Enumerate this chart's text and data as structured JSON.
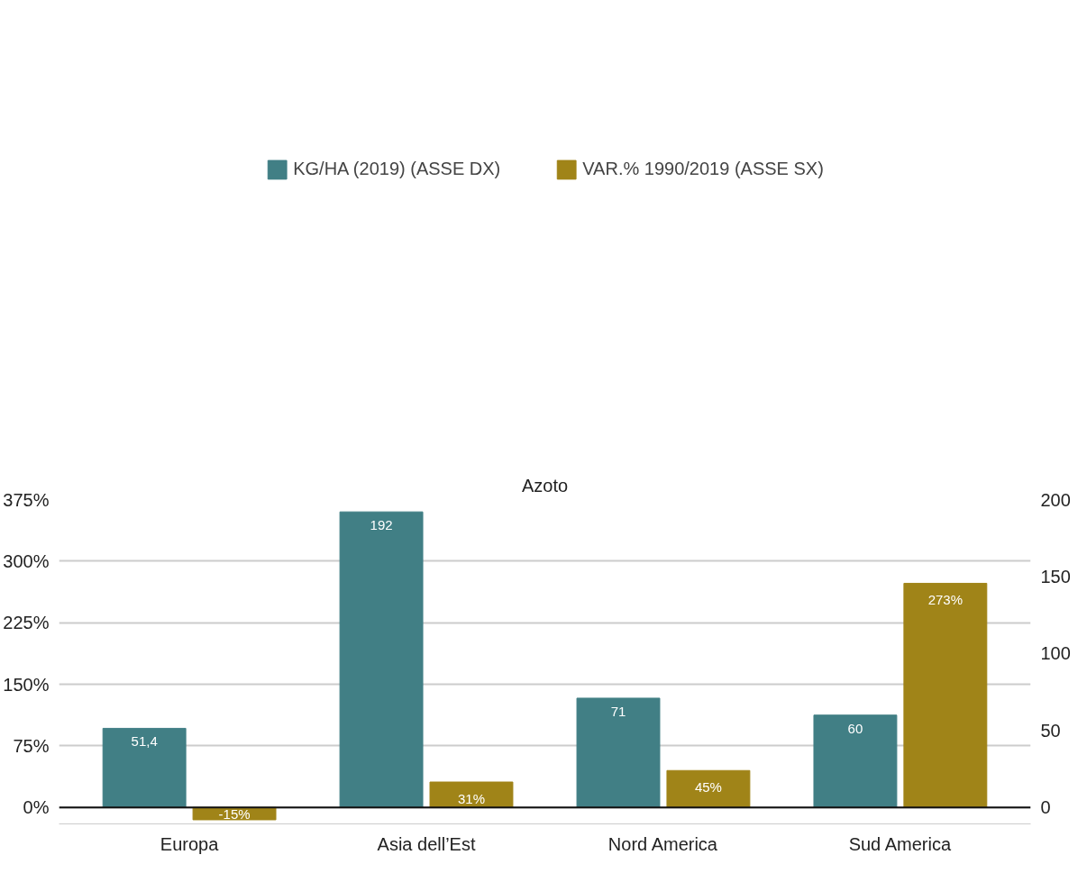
{
  "chart_data": {
    "type": "bar",
    "title": "Azoto",
    "categories": [
      "Europa",
      "Asia dell’Est",
      "Nord America",
      "Sud America"
    ],
    "series": [
      {
        "name": "KG/HA (2019) (ASSE DX)",
        "color": "#417f85",
        "axis": "y2",
        "values": [
          51.4,
          192,
          71,
          60
        ],
        "value_labels": [
          "51,4",
          "192",
          "71",
          "60"
        ]
      },
      {
        "name": "VAR.% 1990/2019 (ASSE SX)",
        "color": "#a08418",
        "values": [
          -15,
          31,
          45,
          273
        ],
        "value_labels": [
          "-15%",
          "31%",
          "45%",
          "273%"
        ]
      }
    ],
    "ylim": [
      -20,
      375
    ],
    "yticks": [
      {
        "value": 0,
        "label": "0%"
      },
      {
        "value": 75,
        "label": "75%"
      },
      {
        "value": 150,
        "label": "150%"
      },
      {
        "value": 225,
        "label": "225%"
      },
      {
        "value": 300,
        "label": "300%"
      },
      {
        "value": 375,
        "label": "375%"
      }
    ],
    "y2lim": [
      -10.67,
      200
    ],
    "y2ticks": [
      0,
      50,
      100,
      150,
      200
    ],
    "grid": "y",
    "legend": "top"
  }
}
